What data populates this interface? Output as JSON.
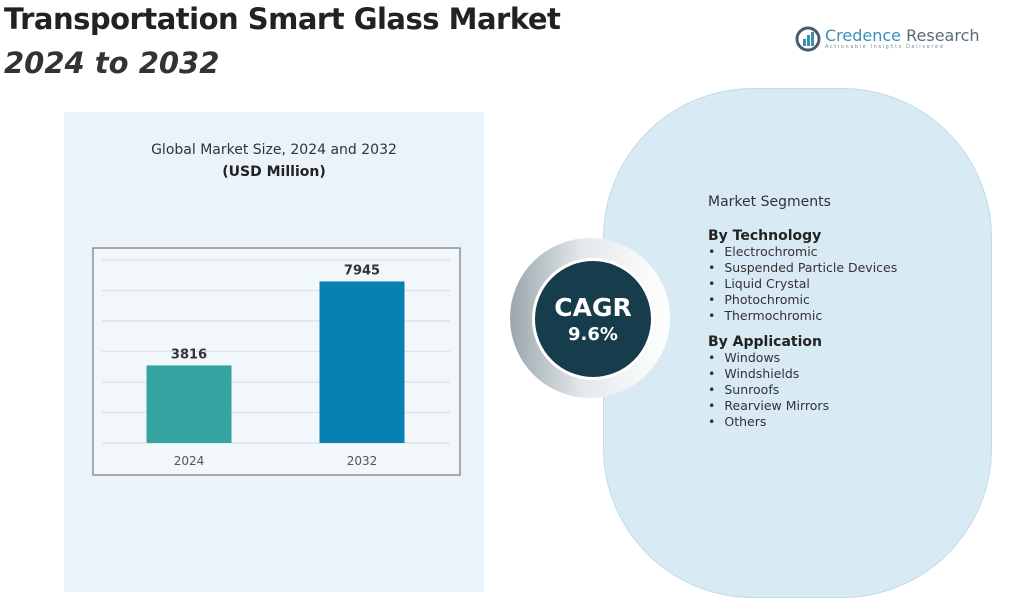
{
  "header": {
    "title": "Transportation Smart Glass Market",
    "subtitle": "2024 to 2032"
  },
  "logo": {
    "name_part1": "Credence",
    "name_part2": " Research",
    "tagline": "Actionable Insights Delivered"
  },
  "chart_data": {
    "type": "bar",
    "title": "Global Market Size, 2024 and 2032",
    "subtitle": "(USD Million)",
    "categories": [
      "2024",
      "2032"
    ],
    "values": [
      3816,
      7945
    ],
    "value_labels": [
      "3816",
      "7945"
    ],
    "colors": [
      "#35a3a0",
      "#0780b2"
    ],
    "xlabel": "",
    "ylabel": "",
    "ylim": [
      0,
      9000
    ],
    "grid": true,
    "legend": "none"
  },
  "cagr": {
    "label": "CAGR",
    "value": "9.6%"
  },
  "segments": {
    "heading": "Market Segments",
    "groups": [
      {
        "title": "By Technology",
        "items": [
          "Electrochromic",
          "Suspended Particle Devices",
          "Liquid Crystal",
          "Photochromic",
          "Thermochromic"
        ]
      },
      {
        "title": "By Application",
        "items": [
          "Windows",
          "Windshields",
          "Sunroofs",
          "Rearview Mirrors",
          "Others"
        ]
      }
    ]
  }
}
